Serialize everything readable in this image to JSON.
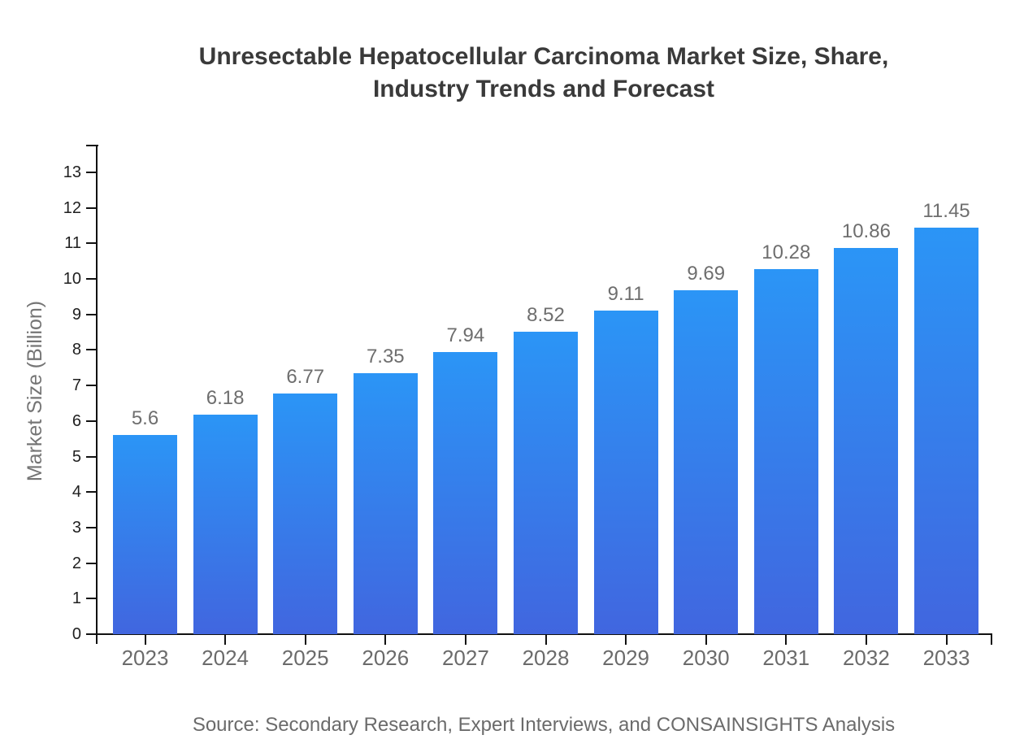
{
  "header": {
    "title_lines": [
      "Unresectable Hepatocellular Carcinoma Market Size, Share,",
      "Industry Trends and Forecast"
    ]
  },
  "chart_data": {
    "type": "bar",
    "title": "Unresectable Hepatocellular Carcinoma Market Size, Share, Industry Trends and Forecast",
    "categories": [
      "2023",
      "2024",
      "2025",
      "2026",
      "2027",
      "2028",
      "2029",
      "2030",
      "2031",
      "2032",
      "2033"
    ],
    "values": [
      5.6,
      6.18,
      6.77,
      7.35,
      7.94,
      8.52,
      9.11,
      9.69,
      10.28,
      10.86,
      11.45
    ],
    "value_labels": [
      "5.6",
      "6.18",
      "6.77",
      "7.35",
      "7.94",
      "8.52",
      "9.11",
      "9.69",
      "10.28",
      "10.86",
      "11.45"
    ],
    "xlabel": "",
    "ylabel": "Market Size (Billion)",
    "ylim": [
      0,
      13.7
    ],
    "yticks": [
      0,
      1,
      2,
      3,
      4,
      5,
      6,
      7,
      8,
      9,
      10,
      11,
      12,
      13
    ],
    "grid": false,
    "legend": "none",
    "colors": {
      "bar_gradient_top": "#2b95f6",
      "bar_gradient_bottom": "#4166df",
      "axis": "#111111",
      "tick_label": "#1f1f1f",
      "category_label": "#6b6b6b",
      "value_label": "#6e6e6e",
      "axis_title": "#757575",
      "title": "#3a3a3a",
      "source": "#6b6b6b"
    }
  },
  "footer": {
    "source": "Source: Secondary Research, Expert Interviews, and CONSAINSIGHTS Analysis"
  }
}
